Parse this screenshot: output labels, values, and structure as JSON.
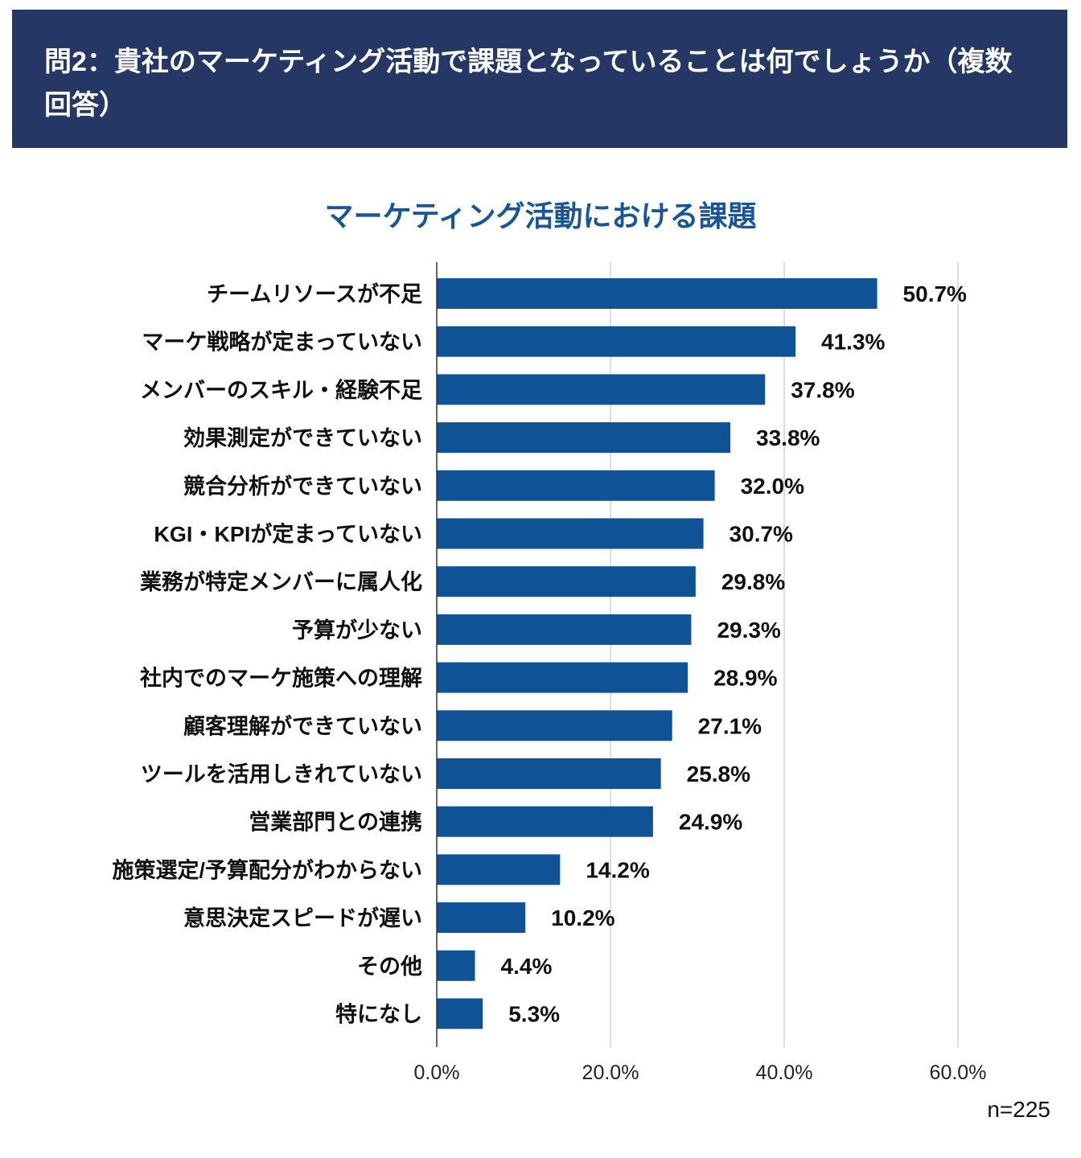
{
  "header": {
    "title": "問2：貴社のマーケティング活動で課題となっていることは何でしょうか（複数回答）"
  },
  "colors": {
    "header_bg": "#253764",
    "title": "#1a5697",
    "bar": "#0f5296",
    "grid": "#d0d0d0"
  },
  "chart_data": {
    "type": "bar",
    "orientation": "horizontal",
    "title": "マーケティング活動における課題",
    "categories": [
      "チームリソースが不足",
      "マーケ戦略が定まっていない",
      "メンバーのスキル・経験不足",
      "効果測定ができていない",
      "競合分析ができていない",
      "KGI・KPIが定まっていない",
      "業務が特定メンバーに属人化",
      "予算が少ない",
      "社内でのマーケ施策への理解",
      "顧客理解ができていない",
      "ツールを活用しきれていない",
      "営業部門との連携",
      "施策選定/予算配分がわからない",
      "意思決定スピードが遅い",
      "その他",
      "特になし"
    ],
    "values": [
      50.7,
      41.3,
      37.8,
      33.8,
      32.0,
      30.7,
      29.8,
      29.3,
      28.9,
      27.1,
      25.8,
      24.9,
      14.2,
      10.2,
      4.4,
      5.3
    ],
    "value_labels": [
      "50.7%",
      "41.3%",
      "37.8%",
      "33.8%",
      "32.0%",
      "30.7%",
      "29.8%",
      "29.3%",
      "28.9%",
      "27.1%",
      "25.8%",
      "24.9%",
      "14.2%",
      "10.2%",
      "4.4%",
      "5.3%"
    ],
    "xlim": [
      0,
      60
    ],
    "xticks": [
      "0.0%",
      "20.0%",
      "40.0%",
      "60.0%"
    ],
    "grid": true,
    "legend": "none",
    "note": "n=225"
  }
}
